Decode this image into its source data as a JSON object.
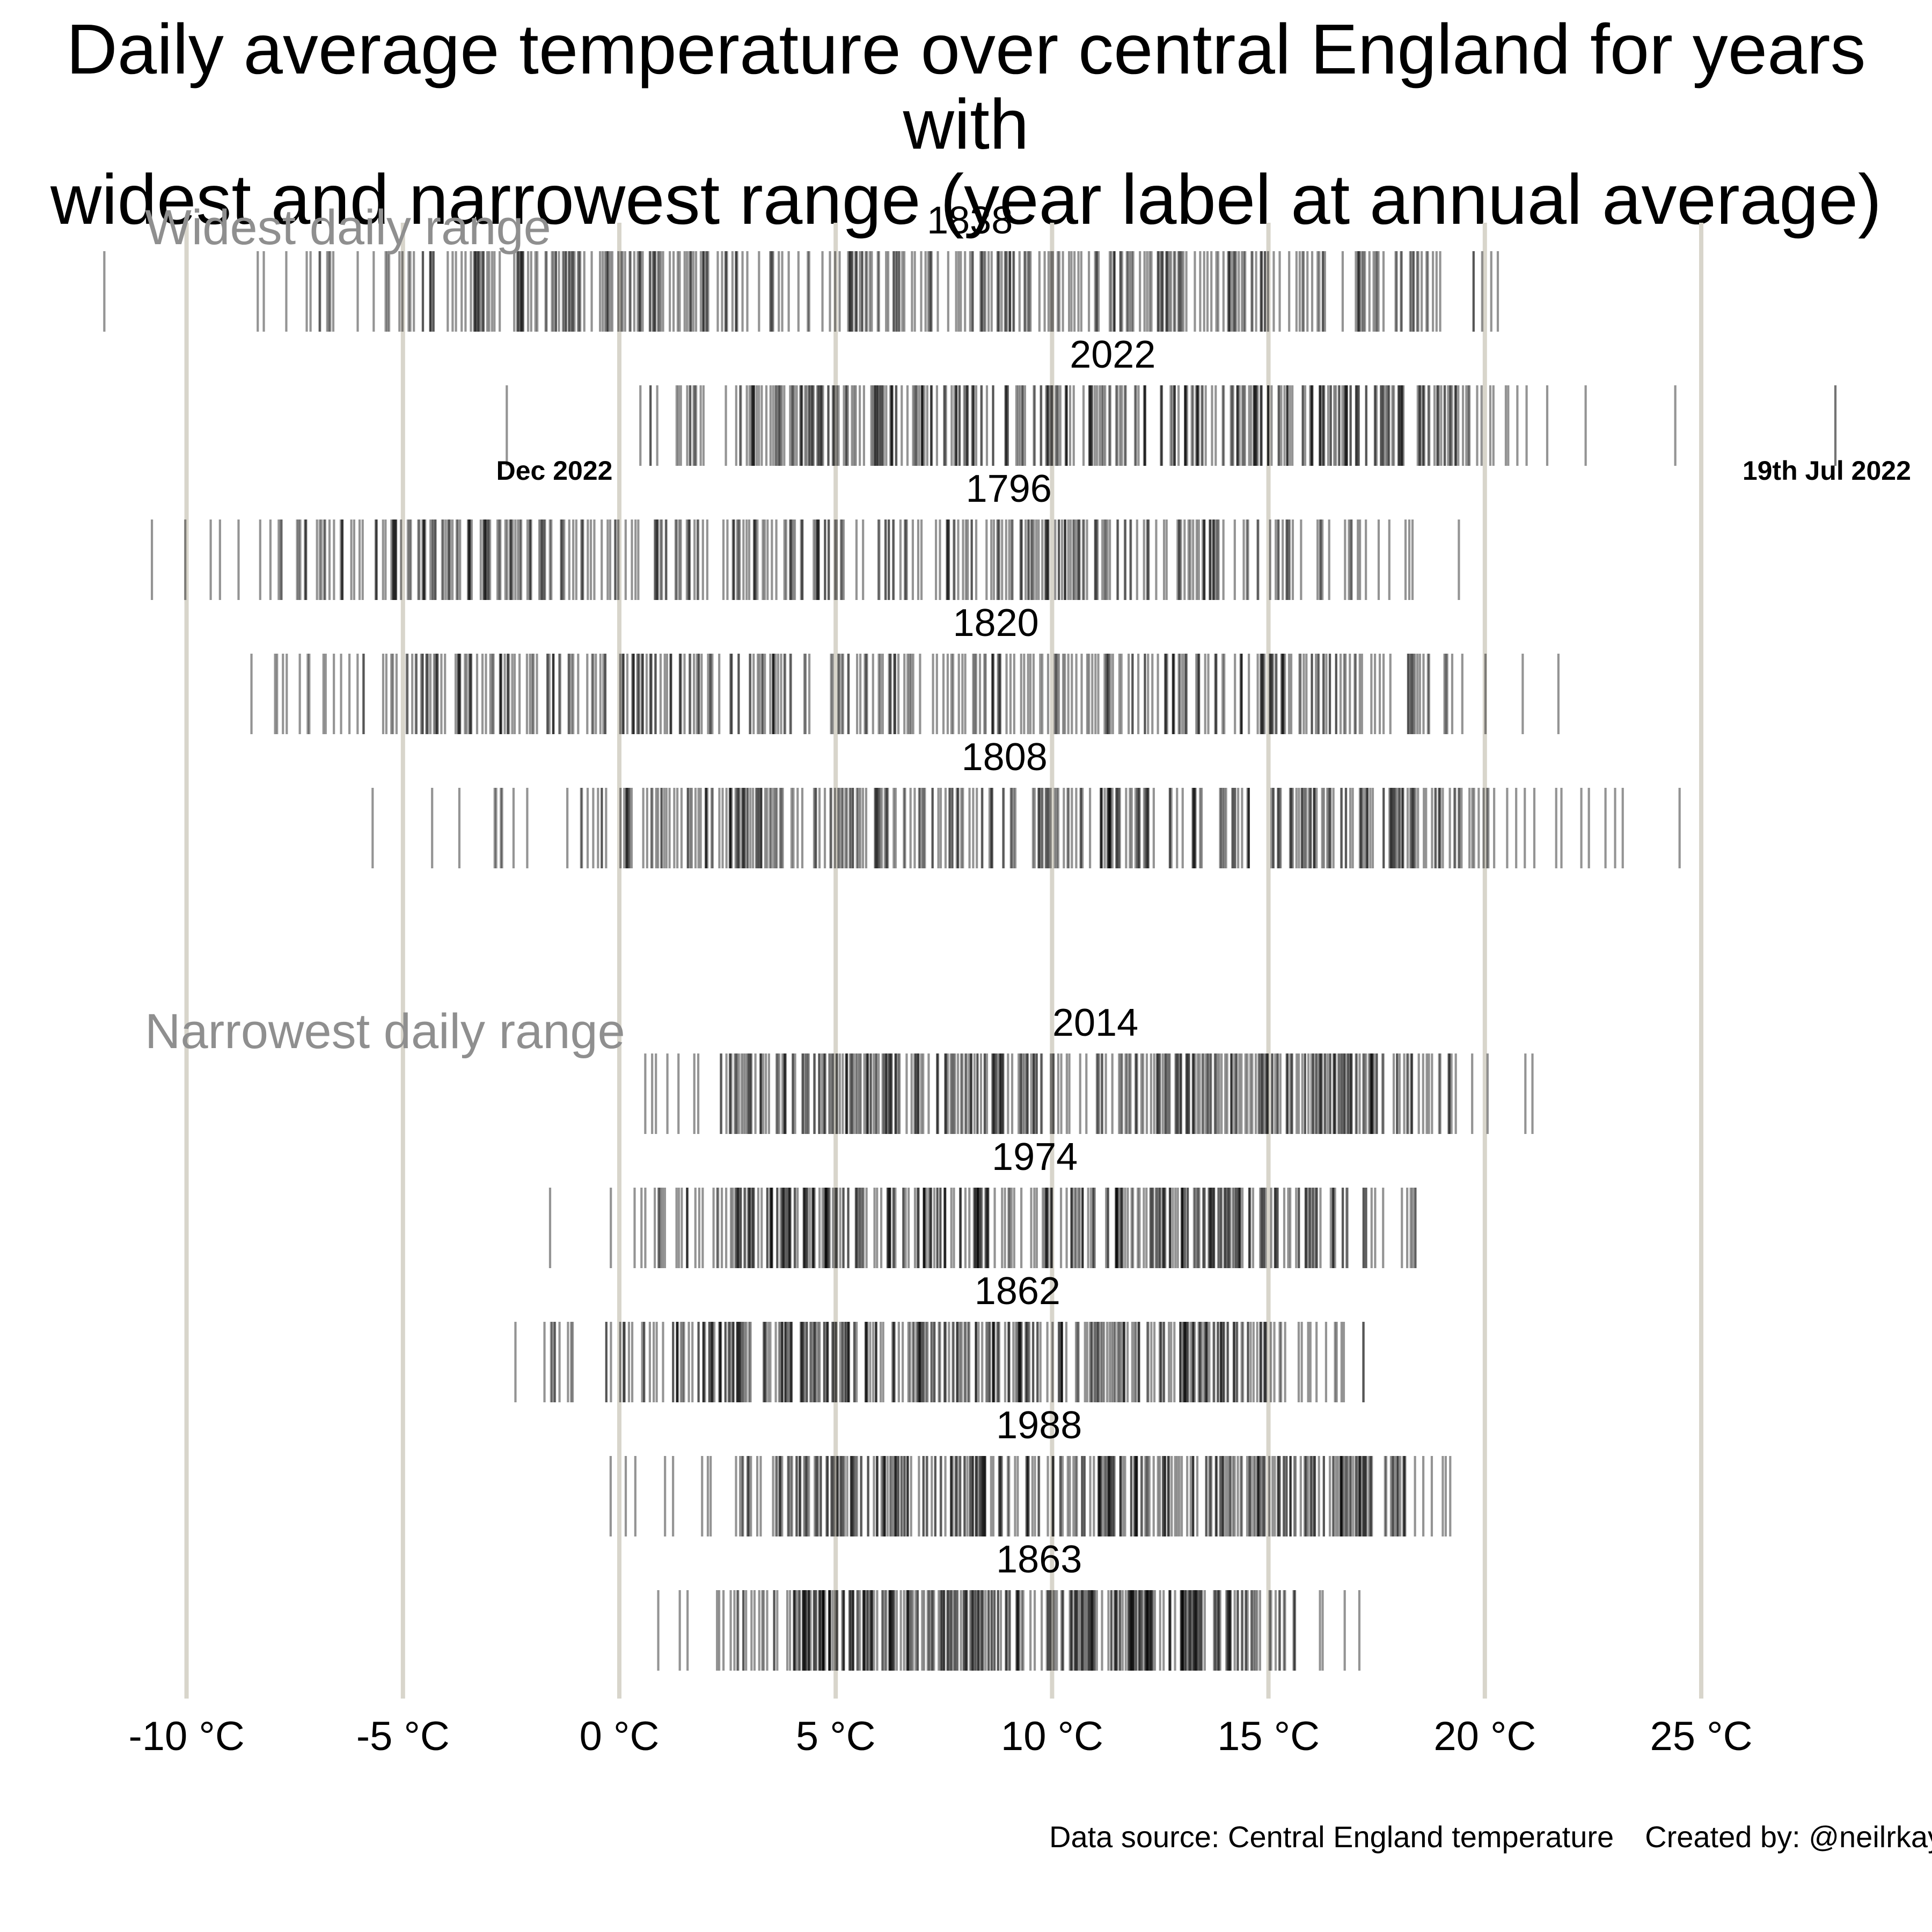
{
  "title": {
    "line1": "Daily average temperature over central England for years with",
    "line2": "widest and narrowest range (year label at annual average)"
  },
  "sections": [
    {
      "id": "widest",
      "label": "Widest daily range"
    },
    {
      "id": "narrowest",
      "label": "Narrowest daily range"
    }
  ],
  "footer": {
    "source": "Data source: Central England temperature",
    "credit": "Created by: @neilrkaye"
  },
  "colors": {
    "background": "#ffffff",
    "gridline": "#d8d5cb",
    "mark": "#000000",
    "mark_opacity": 0.42,
    "section_label": "#8f8f8f",
    "text": "#000000"
  },
  "chart_data": {
    "type": "strip",
    "title": "Daily average temperature over central England for years with widest and narrowest range (year label at annual average)",
    "unit": "°C",
    "xlabel": "",
    "x_axis_range": [
      -13,
      29
    ],
    "grid": "vertical",
    "n_days_per_year": 365,
    "x_ticks": [
      {
        "value": -10,
        "label": "-10 °C"
      },
      {
        "value": -5,
        "label": "-5 °C"
      },
      {
        "value": 0,
        "label": "0 °C"
      },
      {
        "value": 5,
        "label": "5 °C"
      },
      {
        "value": 10,
        "label": "10 °C"
      },
      {
        "value": 15,
        "label": "15 °C"
      },
      {
        "value": 20,
        "label": "20 °C"
      },
      {
        "value": 25,
        "label": "25 °C"
      }
    ],
    "rows": [
      {
        "year": "1838",
        "section": "widest",
        "mean": 8.1,
        "min": -11.9,
        "max": 20.3
      },
      {
        "year": "2022",
        "section": "widest",
        "mean": 11.4,
        "min": -2.6,
        "max": 24.4,
        "outliers": [
          28.1
        ]
      },
      {
        "year": "1796",
        "section": "widest",
        "mean": 9.0,
        "min": -10.8,
        "max": 19.4
      },
      {
        "year": "1820",
        "section": "widest",
        "mean": 8.7,
        "min": -8.5,
        "max": 21.7
      },
      {
        "year": "1808",
        "section": "widest",
        "mean": 8.9,
        "min": -5.7,
        "max": 24.5
      },
      {
        "year": "2014",
        "section": "narrowest",
        "mean": 11.0,
        "min": 0.6,
        "max": 21.1
      },
      {
        "year": "1974",
        "section": "narrowest",
        "mean": 9.6,
        "min": -1.6,
        "max": 18.4
      },
      {
        "year": "1862",
        "section": "narrowest",
        "mean": 9.2,
        "min": -2.4,
        "max": 17.2
      },
      {
        "year": "1988",
        "section": "narrowest",
        "mean": 9.7,
        "min": -0.2,
        "max": 19.2
      },
      {
        "year": "1863",
        "section": "narrowest",
        "mean": 9.7,
        "min": 0.9,
        "max": 17.1
      }
    ],
    "annotations": [
      {
        "text": "Dec 2022",
        "temp": -1.5,
        "row_year": "2022"
      },
      {
        "text": "19th Jul 2022",
        "temp": 27.9,
        "row_year": "2022"
      }
    ]
  }
}
